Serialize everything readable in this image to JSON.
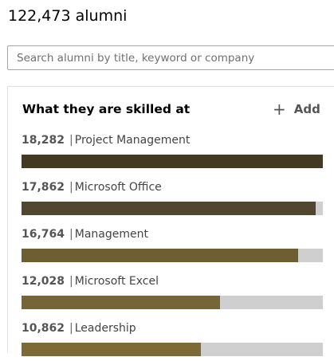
{
  "header": {
    "alumni_count": "122,473 alumni"
  },
  "search": {
    "placeholder": "Search alumni by title, keyword or company",
    "value": ""
  },
  "skills_card": {
    "title": "What they are skilled at",
    "add_label": "Add",
    "separator": "|",
    "skills": [
      {
        "count": "18,282",
        "name": "Project Management",
        "level": 1.0,
        "color": "#423a22"
      },
      {
        "count": "17,862",
        "name": "Microsoft Office",
        "level": 0.977,
        "color": "#514630"
      },
      {
        "count": "16,764",
        "name": "Management",
        "level": 0.917,
        "color": "#6d5f32"
      },
      {
        "count": "12,028",
        "name": "Microsoft Excel",
        "level": 0.658,
        "color": "#766537"
      },
      {
        "count": "10,862",
        "name": "Leadership",
        "level": 0.594,
        "color": "#7d6a36"
      }
    ]
  },
  "colors": {
    "bar_track": "#cfcfcf"
  }
}
